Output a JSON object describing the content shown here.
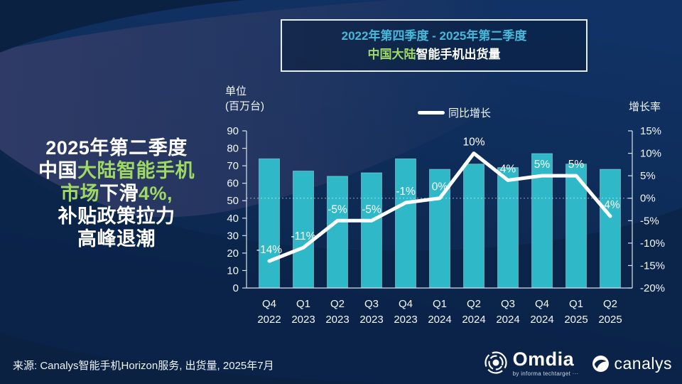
{
  "title_box": {
    "line1": "2022年第四季度 - 2025年第二季度",
    "line2_green": "中国大陆",
    "line2_white": "智能手机出货量"
  },
  "headline": {
    "l1": "2025年第二季度",
    "l2_white": "中国",
    "l2_green": "大陆智能手机",
    "l3_green1": "市场",
    "l3_white": "下滑",
    "l3_green2": "4%,",
    "l4": "补贴政策拉力",
    "l5": "高峰退潮"
  },
  "chart_data": {
    "type": "bar",
    "categories": [
      {
        "q": "Q4",
        "year": "2022"
      },
      {
        "q": "Q1",
        "year": "2023"
      },
      {
        "q": "Q2",
        "year": "2023"
      },
      {
        "q": "Q3",
        "year": "2023"
      },
      {
        "q": "Q4",
        "year": "2023"
      },
      {
        "q": "Q1",
        "year": "2024"
      },
      {
        "q": "Q2",
        "year": "2024"
      },
      {
        "q": "Q3",
        "year": "2024"
      },
      {
        "q": "Q4",
        "year": "2024"
      },
      {
        "q": "Q1",
        "year": "2025"
      },
      {
        "q": "Q2",
        "year": "2025"
      }
    ],
    "series": [
      {
        "name": "出货量",
        "kind": "bar",
        "unit": "百万台",
        "values": [
          74,
          67,
          64,
          66,
          74,
          68,
          71,
          69,
          77,
          71,
          68
        ]
      },
      {
        "name": "同比增长",
        "kind": "line",
        "unit": "%",
        "values": [
          -14,
          -11,
          -5,
          -5,
          -1,
          0,
          10,
          4,
          5,
          5,
          -4
        ],
        "labels": [
          "-14%",
          "-11%",
          "-5%",
          "-5%",
          "-1%",
          "0%",
          "10%",
          "4%",
          "5%",
          "5%",
          "-4%"
        ]
      }
    ],
    "left_axis": {
      "title_line1": "单位",
      "title_line2": "(百万台)",
      "min": 0,
      "max": 90,
      "step": 10
    },
    "right_axis": {
      "title": "增长率",
      "min": -20,
      "max": 15,
      "step": 5,
      "suffix": "%"
    },
    "legend": {
      "label": "同比增长"
    },
    "grid": "zero-line-dotted"
  },
  "footer": {
    "source": "来源: Canalys智能手机Horizon服务, 出货量, 2025年7月",
    "omdia_name": "Omdia",
    "omdia_tagline": "by informa techtarget ···",
    "canalys_name": "canalys"
  },
  "colors": {
    "bar": "#2EB8C8",
    "line": "#FFFFFF",
    "accent_green": "#9FD865",
    "accent_cyan": "#46B8DA",
    "background": "#0D2A54",
    "band": "#2F3B66",
    "axis": "#D7E3EF",
    "box_border": "#E6EEF6"
  }
}
